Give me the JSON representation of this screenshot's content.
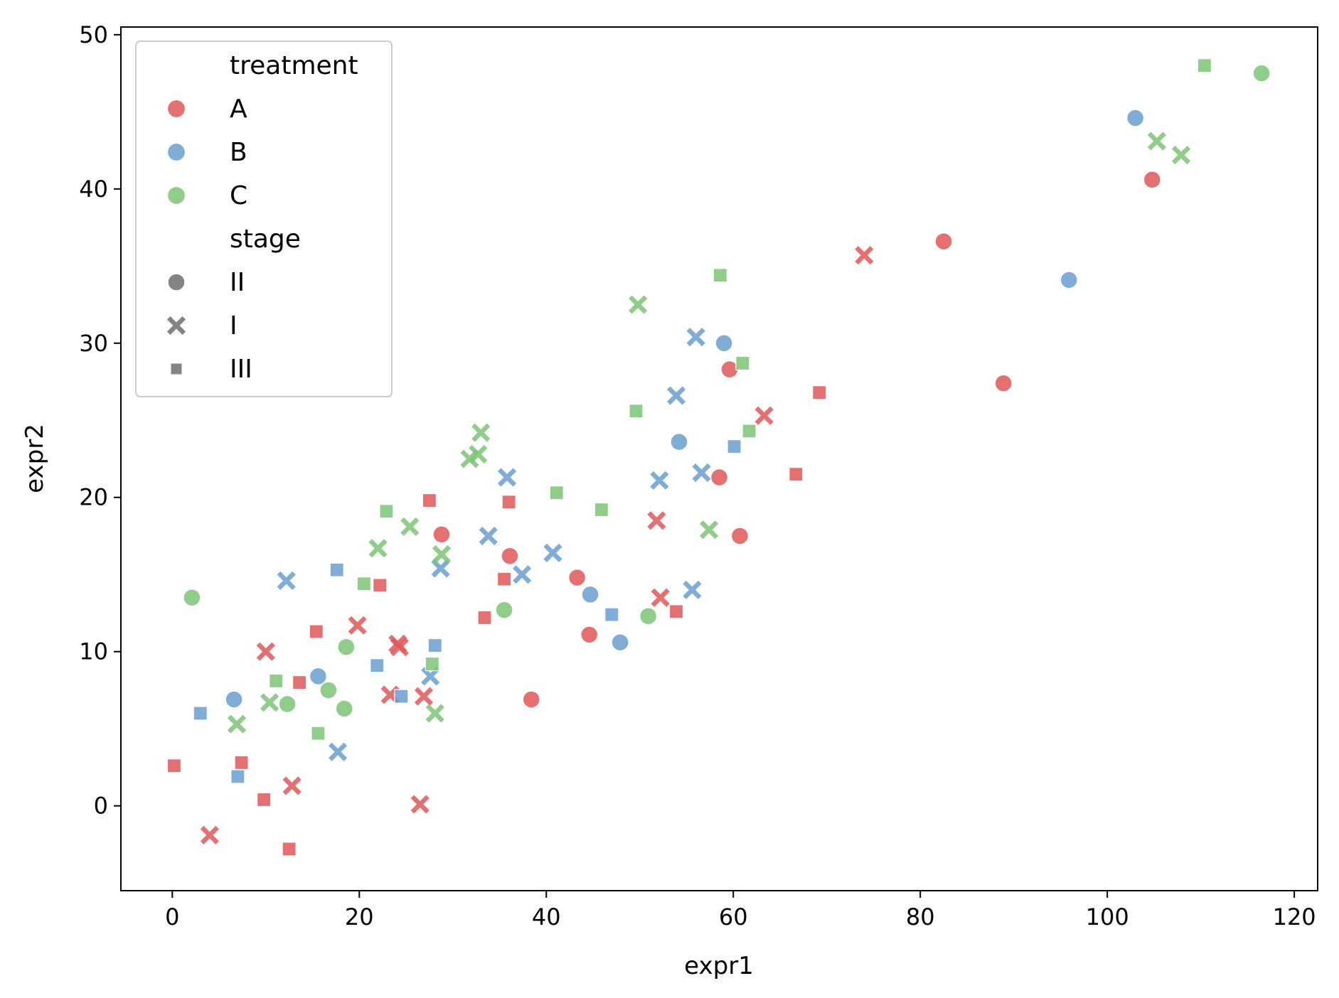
{
  "chart_data": {
    "type": "scatter",
    "xlabel": "expr1",
    "ylabel": "expr2",
    "xlim": [
      -5.5,
      122.5
    ],
    "ylim": [
      -5.5,
      50.5
    ],
    "xticks": [
      "0",
      "20",
      "40",
      "60",
      "80",
      "100",
      "120"
    ],
    "yticks": [
      "0",
      "10",
      "20",
      "30",
      "40",
      "50"
    ],
    "xtick_values": [
      0,
      20,
      40,
      60,
      80,
      100,
      120
    ],
    "ytick_values": [
      0,
      10,
      20,
      30,
      40,
      50
    ],
    "grid": false,
    "legend": {
      "placement": "top-left",
      "hue_title": "treatment",
      "hue_entries": [
        {
          "label": "A",
          "color": "#e15759"
        },
        {
          "label": "B",
          "color": "#6a9fcf"
        },
        {
          "label": "C",
          "color": "#7cc476"
        }
      ],
      "style_title": "stage",
      "style_entries": [
        {
          "label": "II",
          "marker": "circle"
        },
        {
          "label": "I",
          "marker": "x"
        },
        {
          "label": "III",
          "marker": "square"
        }
      ]
    },
    "series": [
      {
        "treatment": "A",
        "stage": "II",
        "points": [
          [
            28.8,
            17.6
          ],
          [
            36.1,
            16.2
          ],
          [
            38.4,
            6.9
          ],
          [
            43.3,
            14.8
          ],
          [
            44.6,
            11.1
          ],
          [
            58.5,
            21.3
          ],
          [
            59.6,
            28.3
          ],
          [
            60.7,
            17.5
          ],
          [
            82.5,
            36.6
          ],
          [
            88.9,
            27.4
          ],
          [
            104.8,
            40.6
          ]
        ]
      },
      {
        "treatment": "A",
        "stage": "I",
        "points": [
          [
            4.0,
            -1.9
          ],
          [
            10.0,
            10.0
          ],
          [
            12.8,
            1.3
          ],
          [
            19.8,
            11.7
          ],
          [
            23.3,
            7.2
          ],
          [
            24.1,
            10.5
          ],
          [
            24.3,
            10.3
          ],
          [
            26.5,
            0.1
          ],
          [
            26.9,
            7.1
          ],
          [
            51.8,
            18.5
          ],
          [
            52.2,
            13.5
          ],
          [
            63.3,
            25.3
          ],
          [
            74.0,
            35.7
          ]
        ]
      },
      {
        "treatment": "A",
        "stage": "III",
        "points": [
          [
            0.2,
            2.6
          ],
          [
            7.4,
            2.8
          ],
          [
            9.8,
            0.4
          ],
          [
            12.5,
            -2.8
          ],
          [
            13.6,
            8.0
          ],
          [
            15.4,
            11.3
          ],
          [
            22.2,
            14.3
          ],
          [
            27.5,
            19.8
          ],
          [
            33.4,
            12.2
          ],
          [
            35.5,
            14.7
          ],
          [
            36.0,
            19.7
          ],
          [
            53.9,
            12.6
          ],
          [
            66.7,
            21.5
          ],
          [
            69.2,
            26.8
          ]
        ]
      },
      {
        "treatment": "B",
        "stage": "II",
        "points": [
          [
            6.6,
            6.9
          ],
          [
            15.6,
            8.4
          ],
          [
            44.7,
            13.7
          ],
          [
            47.9,
            10.6
          ],
          [
            54.2,
            23.6
          ],
          [
            59.0,
            30.0
          ],
          [
            95.9,
            34.1
          ],
          [
            103.0,
            44.6
          ]
        ]
      },
      {
        "treatment": "B",
        "stage": "I",
        "points": [
          [
            12.2,
            14.6
          ],
          [
            17.7,
            3.5
          ],
          [
            27.6,
            8.4
          ],
          [
            28.7,
            15.4
          ],
          [
            33.8,
            17.5
          ],
          [
            35.8,
            21.3
          ],
          [
            37.4,
            15.0
          ],
          [
            40.7,
            16.4
          ],
          [
            52.1,
            21.1
          ],
          [
            53.9,
            26.6
          ],
          [
            55.6,
            14.0
          ],
          [
            56.0,
            30.4
          ],
          [
            56.6,
            21.6
          ]
        ]
      },
      {
        "treatment": "B",
        "stage": "III",
        "points": [
          [
            3.0,
            6.0
          ],
          [
            7.0,
            1.9
          ],
          [
            17.6,
            15.3
          ],
          [
            21.9,
            9.1
          ],
          [
            24.5,
            7.1
          ],
          [
            28.1,
            10.4
          ],
          [
            47.0,
            12.4
          ],
          [
            60.1,
            23.3
          ]
        ]
      },
      {
        "treatment": "C",
        "stage": "II",
        "points": [
          [
            2.1,
            13.5
          ],
          [
            12.3,
            6.6
          ],
          [
            16.7,
            7.5
          ],
          [
            18.4,
            6.3
          ],
          [
            18.6,
            10.3
          ],
          [
            35.5,
            12.7
          ],
          [
            50.9,
            12.3
          ],
          [
            116.5,
            47.5
          ]
        ]
      },
      {
        "treatment": "C",
        "stage": "I",
        "points": [
          [
            6.9,
            5.3
          ],
          [
            10.4,
            6.7
          ],
          [
            22.0,
            16.7
          ],
          [
            25.4,
            18.1
          ],
          [
            28.1,
            6.0
          ],
          [
            28.8,
            16.3
          ],
          [
            31.8,
            22.5
          ],
          [
            32.7,
            22.8
          ],
          [
            33.0,
            24.2
          ],
          [
            49.8,
            32.5
          ],
          [
            57.4,
            17.9
          ],
          [
            105.3,
            43.1
          ],
          [
            107.9,
            42.2
          ]
        ]
      },
      {
        "treatment": "C",
        "stage": "III",
        "points": [
          [
            11.1,
            8.1
          ],
          [
            15.6,
            4.7
          ],
          [
            20.5,
            14.4
          ],
          [
            22.9,
            19.1
          ],
          [
            27.8,
            9.2
          ],
          [
            41.1,
            20.3
          ],
          [
            45.9,
            19.2
          ],
          [
            49.6,
            25.6
          ],
          [
            58.6,
            34.4
          ],
          [
            61.0,
            28.7
          ],
          [
            61.7,
            24.3
          ],
          [
            110.4,
            48.0
          ]
        ]
      }
    ]
  }
}
